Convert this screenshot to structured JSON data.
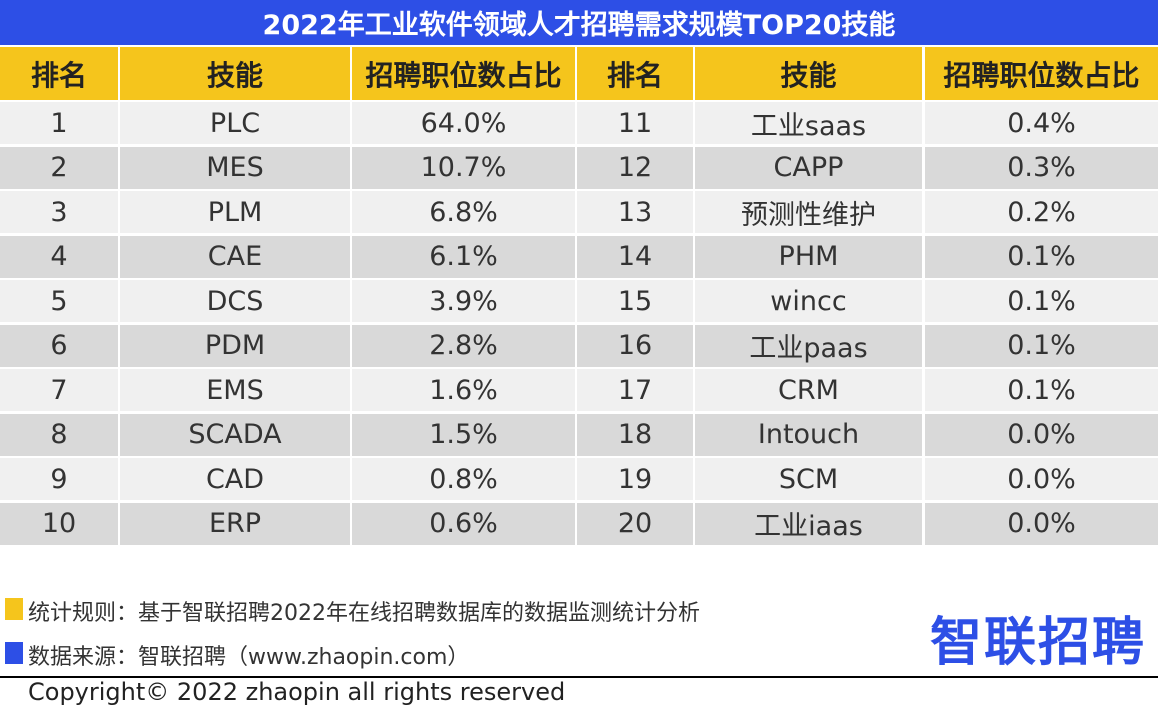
{
  "title": "2022年工业软件领域人才招聘需求规模TOP20技能",
  "table": {
    "header": [
      "排名",
      "技能",
      "招聘职位数占比",
      "排名",
      "技能",
      "招聘职位数占比"
    ],
    "rows": [
      [
        1,
        "PLC",
        "64.0%",
        11,
        "工业saas",
        "0.4%"
      ],
      [
        2,
        "MES",
        "10.7%",
        12,
        "CAPP",
        "0.3%"
      ],
      [
        3,
        "PLM",
        "6.8%",
        13,
        "预测性维护",
        "0.2%"
      ],
      [
        4,
        "CAE",
        "6.1%",
        14,
        "PHM",
        "0.1%"
      ],
      [
        5,
        "DCS",
        "3.9%",
        15,
        "wincc",
        "0.1%"
      ],
      [
        6,
        "PDM",
        "2.8%",
        16,
        "工业paas",
        "0.1%"
      ],
      [
        7,
        "EMS",
        "1.6%",
        17,
        "CRM",
        "0.1%"
      ],
      [
        8,
        "SCADA",
        "1.5%",
        18,
        "Intouch",
        "0.0%"
      ],
      [
        9,
        "CAD",
        "0.8%",
        19,
        "SCM",
        "0.0%"
      ],
      [
        10,
        "ERP",
        "0.6%",
        20,
        "工业iaas",
        "0.0%"
      ]
    ]
  },
  "notes": [
    "统计规则：基于智联招聘2022年在线招聘数据库的数据监测统计分析",
    "数据来源：智联招聘（www.zhaopin.com）"
  ],
  "logo": "智联招聘",
  "copyright": "Copyright© 2022 zhaopin all rights reserved"
}
